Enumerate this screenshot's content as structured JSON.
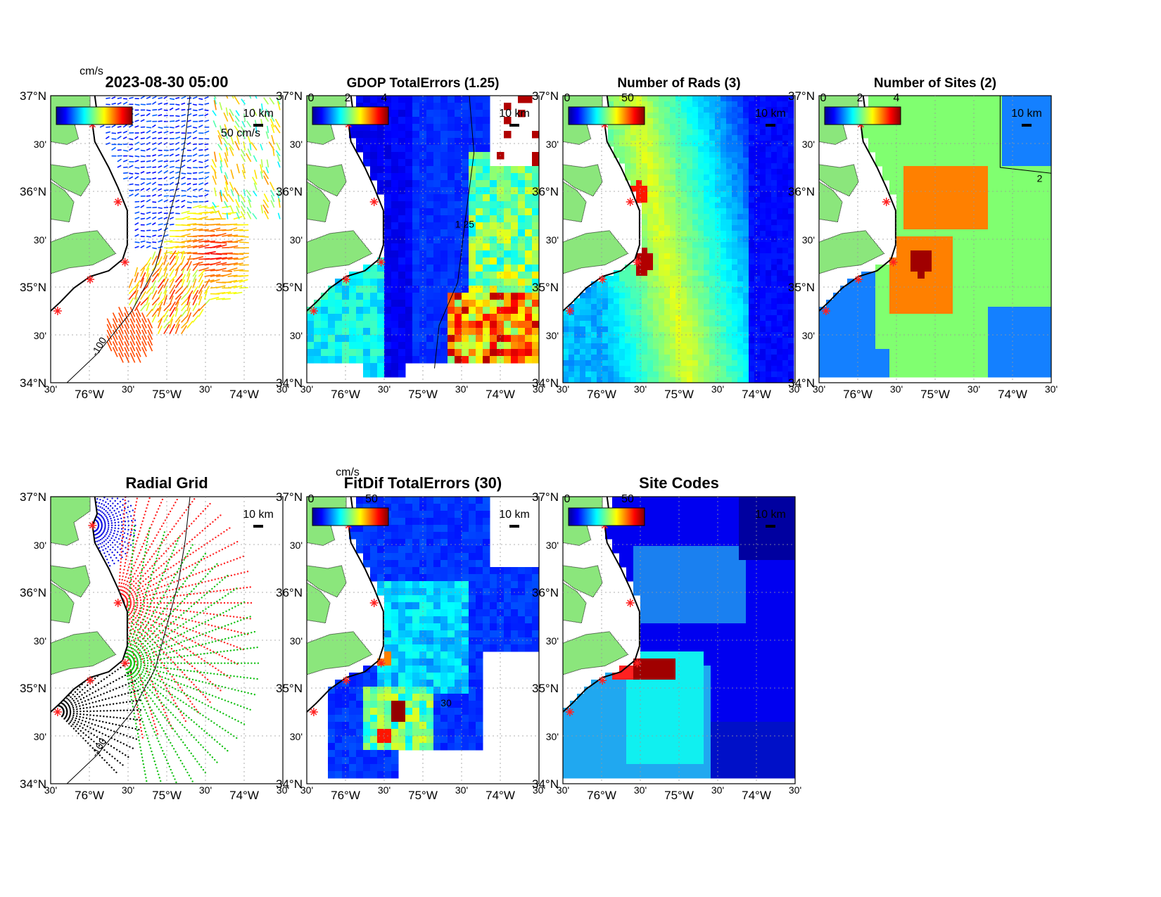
{
  "figure": {
    "date_title": "2023-08-30 05:00",
    "colors": {
      "land": "#8BE67C",
      "site_marker": "#FF2020",
      "ocean_blue": "#1010E0",
      "jet": [
        "#00008F",
        "#0000FF",
        "#0080FF",
        "#00FFFF",
        "#80FF80",
        "#FFFF00",
        "#FF8000",
        "#FF0000",
        "#800000"
      ]
    },
    "axes": {
      "lat_labels": [
        "37°N",
        "30'",
        "36°N",
        "30'",
        "35°N",
        "30'",
        "34°N"
      ],
      "lon_labels": [
        "30'",
        "76°W",
        "30'",
        "75°W",
        "30'",
        "74°W",
        "30'"
      ]
    },
    "scale_bar_label": "10 km",
    "isobath_label": "-100",
    "panels": [
      {
        "id": "currents",
        "title": "2023-08-30 05:00",
        "cbar_unit": "cm/s",
        "cbar_ticks": [],
        "vector_scale": "50 cm/s",
        "map": "vectors"
      },
      {
        "id": "gdop",
        "title": "GDOP TotalErrors (1.25)",
        "cbar_unit": "",
        "cbar_ticks": [
          "0",
          "2",
          "4"
        ],
        "contour_label": "1.25",
        "map": "gdop"
      },
      {
        "id": "nrads",
        "title": "Number of Rads (3)",
        "cbar_unit": "",
        "cbar_ticks": [
          "0",
          "50"
        ],
        "map": "nrads"
      },
      {
        "id": "nsites",
        "title": "Number of Sites (2)",
        "cbar_unit": "",
        "cbar_ticks": [
          "0",
          "2",
          "4"
        ],
        "contour_label": "2",
        "map": "nsites"
      },
      {
        "id": "radgrid",
        "title": "Radial Grid",
        "cbar_unit": "",
        "cbar_ticks": [],
        "map": "radgrid"
      },
      {
        "id": "fitdif",
        "title": "FitDif TotalErrors (30)",
        "cbar_unit": "cm/s",
        "cbar_ticks": [
          "0",
          "50"
        ],
        "contour_label": "30",
        "map": "fitdif"
      },
      {
        "id": "sitecodes",
        "title": "Site Codes",
        "cbar_unit": "",
        "cbar_ticks": [
          "0",
          "50"
        ],
        "map": "sitecodes"
      }
    ]
  }
}
